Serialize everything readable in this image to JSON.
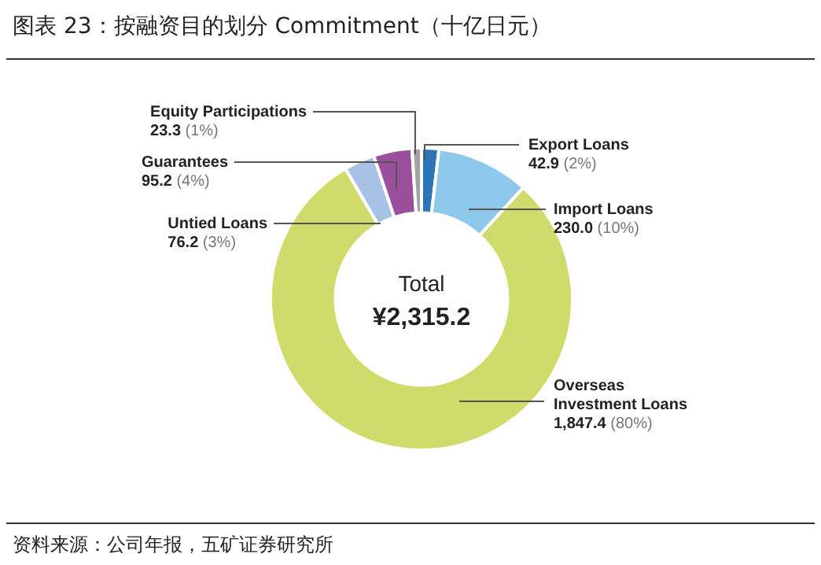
{
  "chart_data": {
    "type": "donut",
    "title": "图表 23：按融资目的划分 Commitment（十亿日元）",
    "categories": [
      "Export Loans",
      "Import Loans",
      "Overseas Investment Loans",
      "Untied Loans",
      "Guarantees",
      "Equity Participations"
    ],
    "values": [
      42.9,
      230.0,
      1847.4,
      76.2,
      95.2,
      23.3
    ],
    "value_labels": [
      "42.9 (2%)",
      "230.0 (10%)",
      "1,847.4 (80%)",
      "76.2 (3%)",
      "95.2 (4%)",
      "23.3 (1%)"
    ],
    "colors": [
      "#2e75b6",
      "#8ec8ea",
      "#cfdc6c",
      "#a8c2e6",
      "#9a4f9d",
      "#a3a3a3"
    ],
    "annotations": [
      "Total",
      "¥2,315.2",
      "资料来源：公司年报，五矿证券研究所"
    ],
    "legend": false
  }
}
